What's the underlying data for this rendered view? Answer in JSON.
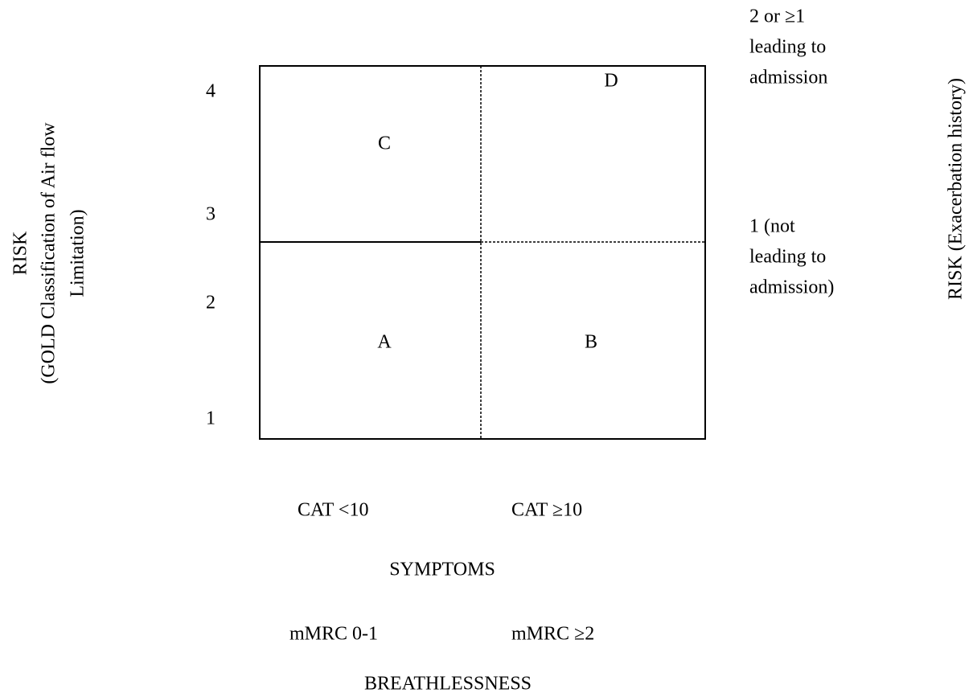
{
  "left_axis": {
    "title_lines": [
      "RISK",
      "(GOLD Classification of Air flow",
      "Limitation)"
    ],
    "levels": [
      "4",
      "3",
      "2",
      "1"
    ]
  },
  "quadrants": [
    "C",
    "D",
    "A",
    "B"
  ],
  "right_axis": {
    "title": "RISK (Exacerbation history)",
    "upper_lines": [
      "2 or ≥1",
      "leading to",
      "admission"
    ],
    "lower_lines": [
      "1 (not",
      "leading to",
      "admission)"
    ]
  },
  "bottom": {
    "symptoms_labels": [
      "CAT <10",
      "CAT ≥10"
    ],
    "symptoms_title": "SYMPTOMS",
    "breathlessness_labels": [
      "mMRC 0-1",
      "mMRC ≥2"
    ],
    "breathlessness_title": "BREATHLESSNESS"
  }
}
